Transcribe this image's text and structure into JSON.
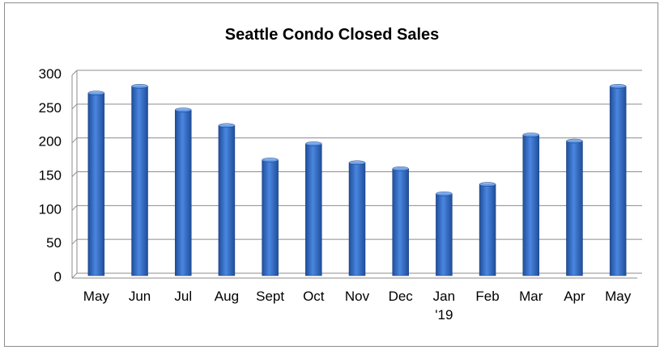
{
  "chart_data": {
    "type": "bar",
    "title": "Seattle Condo Closed Sales",
    "categories": [
      "May",
      "Jun",
      "Jul",
      "Aug",
      "Sept",
      "Oct",
      "Nov",
      "Dec",
      "Jan\n'19",
      "Feb",
      "Mar",
      "Apr",
      "May"
    ],
    "values": [
      270,
      280,
      245,
      222,
      171,
      195,
      167,
      158,
      121,
      135,
      208,
      199,
      280
    ],
    "xlabel": "",
    "ylabel": "",
    "ylim": [
      0,
      300
    ],
    "yticks": [
      0,
      50,
      100,
      150,
      200,
      250,
      300
    ],
    "grid": true,
    "legend": "none",
    "colors": {
      "bar_dark": "#1f4e9a",
      "bar_mid": "#4a86e0",
      "bar_light": "#9fc3f5",
      "grid": "#8c8c8c"
    }
  }
}
